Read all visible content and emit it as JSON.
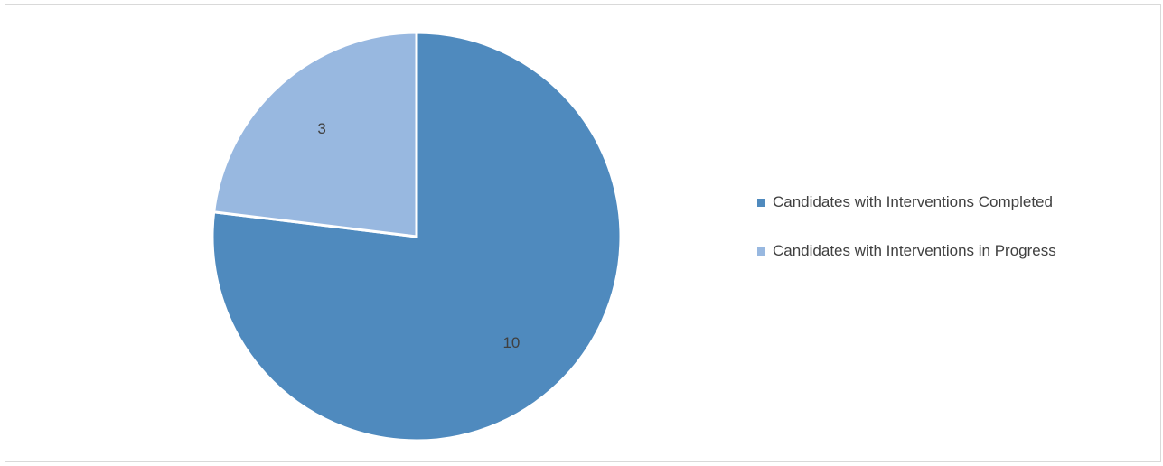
{
  "chart_data": {
    "type": "pie",
    "title": "",
    "slices": [
      {
        "name": "Candidates with Interventions Completed",
        "value": 10,
        "label": "10",
        "color": "#4F8ABE"
      },
      {
        "name": "Candidates with Interventions in Progress",
        "value": 3,
        "label": "3",
        "color": "#98B8E0"
      }
    ],
    "start_angle_deg": 0,
    "direction": "clockwise",
    "legend_position": "right",
    "slice_border_color": "#FFFFFF"
  }
}
